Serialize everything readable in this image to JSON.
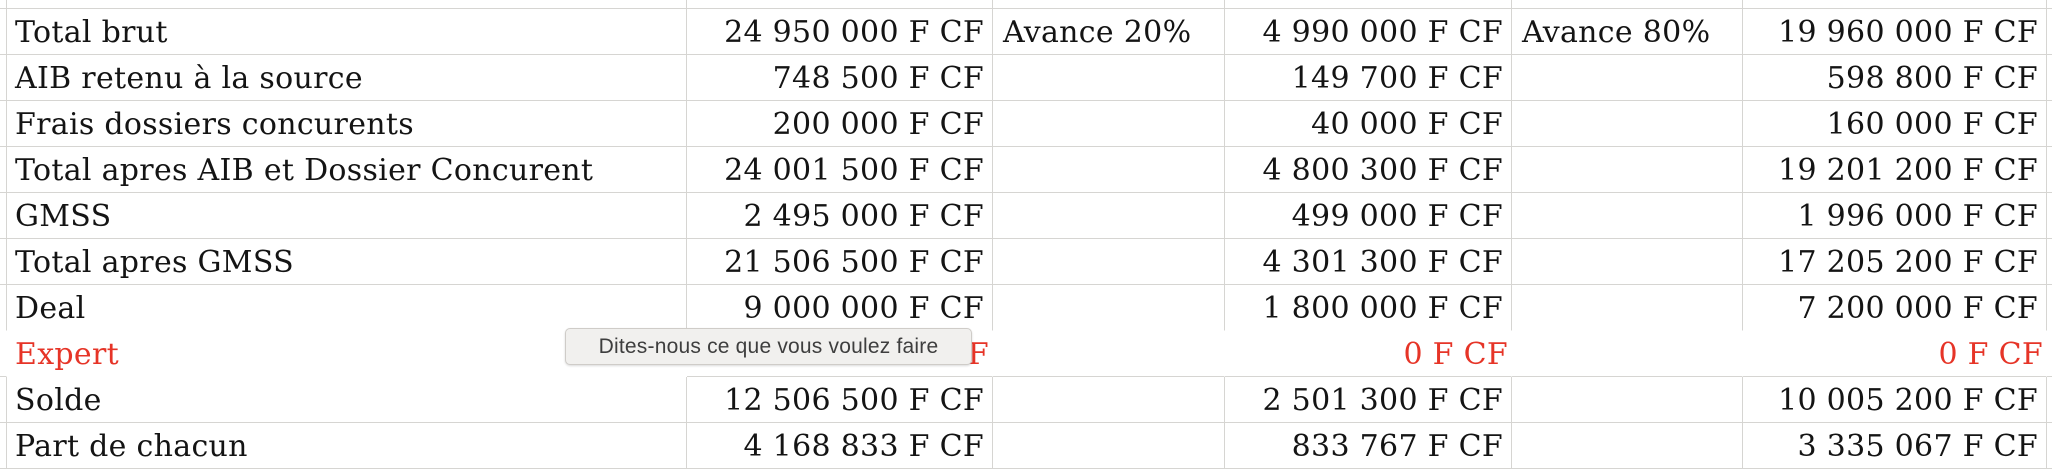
{
  "tooltip": {
    "text": "Dites-nous ce que vous voulez faire"
  },
  "colors": {
    "negative_red": "#e63427",
    "error_flag_green": "#2e7d3e",
    "gridline": "#d6d5d2"
  },
  "sheet": {
    "columns": [
      "row-label",
      "amount-total",
      "avance-20-label",
      "amount-20",
      "avance-80-label",
      "amount-80"
    ],
    "rows": [
      {
        "cells": [
          "Total brut",
          "24 950 000 F CF",
          "Avance 20%",
          "4 990 000 F CF",
          "Avance 80%",
          "19 960 000 F CF"
        ]
      },
      {
        "cells": [
          "AIB retenu à la source",
          "748 500 F CF",
          "",
          "149 700 F CF",
          "",
          "598 800 F CF"
        ],
        "error_flag_cell": 3
      },
      {
        "cells": [
          "Frais dossiers concurents",
          "200 000 F CF",
          "",
          "40 000 F CF",
          "",
          "160 000 F CF"
        ]
      },
      {
        "cells": [
          "Total apres AIB et Dossier Concurent",
          "24 001 500 F CF",
          "",
          "4 800 300 F CF",
          "",
          "19 201 200 F CF"
        ]
      },
      {
        "cells": [
          "GMSS",
          "2 495 000 F CF",
          "",
          "499 000 F CF",
          "",
          "1 996 000 F CF"
        ]
      },
      {
        "cells": [
          "Total apres GMSS",
          "21 506 500 F CF",
          "",
          "4 301 300 F CF",
          "",
          "17 205 200 F CF"
        ]
      },
      {
        "cells": [
          "Deal",
          "9 000 000 F CF",
          "",
          "1 800 000 F CF",
          "",
          "7 200 000 F CF"
        ]
      },
      {
        "cells": [
          "Expert",
          "0 F CF",
          "",
          "0 F CF",
          "",
          "0 F CF"
        ],
        "red": true
      },
      {
        "cells": [
          "Solde",
          "12 506 500 F CF",
          "",
          "2 501 300 F CF",
          "",
          "10 005 200 F CF"
        ]
      },
      {
        "cells": [
          "Part de chacun",
          "4 168 833 F CF",
          "",
          "833 767 F CF",
          "",
          "3 335 067 F CF"
        ]
      }
    ]
  }
}
